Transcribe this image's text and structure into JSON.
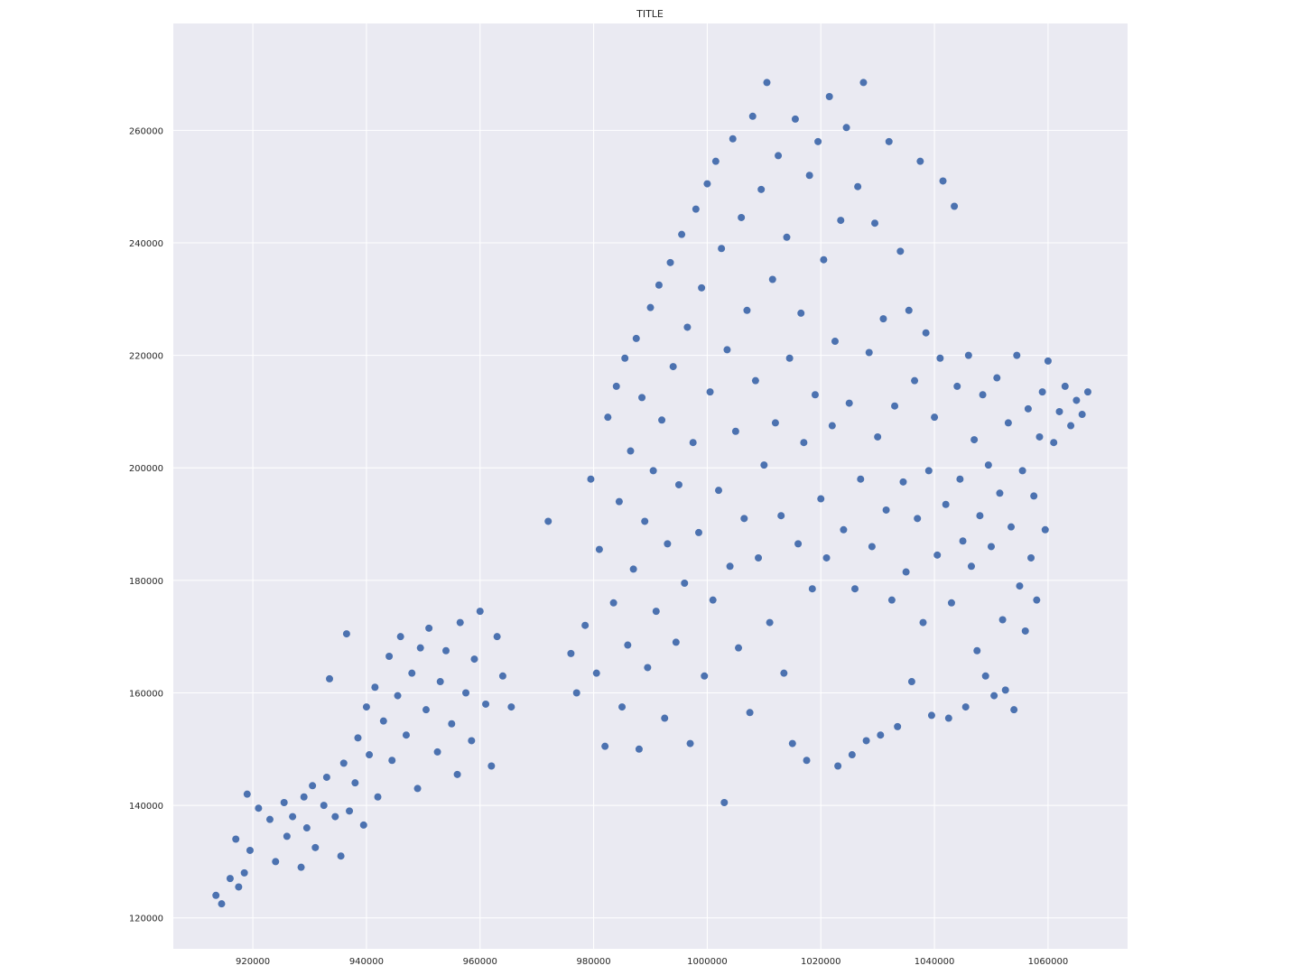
{
  "chart_data": {
    "type": "scatter",
    "title": "TITLE",
    "xlabel": "",
    "ylabel": "",
    "xlim": [
      906000,
      1074000
    ],
    "ylim": [
      114500,
      279000
    ],
    "xticks": [
      920000,
      940000,
      960000,
      980000,
      1000000,
      1020000,
      1040000,
      1060000
    ],
    "yticks": [
      120000,
      140000,
      160000,
      180000,
      200000,
      220000,
      240000,
      260000
    ],
    "grid": true,
    "colors": {
      "background": "#eaeaf2",
      "grid": "#ffffff",
      "marker": "#4c72b0"
    },
    "series": [
      {
        "name": "",
        "points": [
          [
            913500,
            124000
          ],
          [
            914500,
            122500
          ],
          [
            916000,
            127000
          ],
          [
            917500,
            125500
          ],
          [
            917000,
            134000
          ],
          [
            918500,
            128000
          ],
          [
            919500,
            132000
          ],
          [
            921000,
            139500
          ],
          [
            919000,
            142000
          ],
          [
            923000,
            137500
          ],
          [
            924000,
            130000
          ],
          [
            925500,
            140500
          ],
          [
            927000,
            138000
          ],
          [
            928500,
            129000
          ],
          [
            929500,
            136000
          ],
          [
            930500,
            143500
          ],
          [
            931000,
            132500
          ],
          [
            932500,
            140000
          ],
          [
            933000,
            145000
          ],
          [
            934500,
            138000
          ],
          [
            935500,
            131000
          ],
          [
            936000,
            147500
          ],
          [
            937000,
            139000
          ],
          [
            938500,
            152000
          ],
          [
            938000,
            144000
          ],
          [
            939500,
            136500
          ],
          [
            940000,
            157500
          ],
          [
            940500,
            149000
          ],
          [
            941500,
            161000
          ],
          [
            942000,
            141500
          ],
          [
            943000,
            155000
          ],
          [
            944000,
            166500
          ],
          [
            944500,
            148000
          ],
          [
            945500,
            159500
          ],
          [
            946000,
            170000
          ],
          [
            947000,
            152500
          ],
          [
            948000,
            163500
          ],
          [
            949000,
            143000
          ],
          [
            949500,
            168000
          ],
          [
            950500,
            157000
          ],
          [
            951000,
            171500
          ],
          [
            952500,
            149500
          ],
          [
            953000,
            162000
          ],
          [
            954000,
            167500
          ],
          [
            955000,
            154500
          ],
          [
            956000,
            145500
          ],
          [
            956500,
            172500
          ],
          [
            957500,
            160000
          ],
          [
            958500,
            151500
          ],
          [
            959000,
            166000
          ],
          [
            960000,
            174500
          ],
          [
            961000,
            158000
          ],
          [
            962000,
            147000
          ],
          [
            963000,
            170000
          ],
          [
            964000,
            163000
          ],
          [
            965500,
            157500
          ],
          [
            936500,
            170500
          ],
          [
            933500,
            162500
          ],
          [
            929000,
            141500
          ],
          [
            926000,
            134500
          ],
          [
            972000,
            190500
          ],
          [
            976000,
            167000
          ],
          [
            977000,
            160000
          ],
          [
            978500,
            172000
          ],
          [
            979500,
            198000
          ],
          [
            980500,
            163500
          ],
          [
            981000,
            185500
          ],
          [
            982000,
            150500
          ],
          [
            982500,
            209000
          ],
          [
            983500,
            176000
          ],
          [
            984000,
            214500
          ],
          [
            984500,
            194000
          ],
          [
            985000,
            157500
          ],
          [
            985500,
            219500
          ],
          [
            986000,
            168500
          ],
          [
            986500,
            203000
          ],
          [
            987000,
            182000
          ],
          [
            987500,
            223000
          ],
          [
            988000,
            150000
          ],
          [
            988500,
            212500
          ],
          [
            989000,
            190500
          ],
          [
            989500,
            164500
          ],
          [
            990000,
            228500
          ],
          [
            990500,
            199500
          ],
          [
            991000,
            174500
          ],
          [
            991500,
            232500
          ],
          [
            992000,
            208500
          ],
          [
            992500,
            155500
          ],
          [
            993000,
            186500
          ],
          [
            993500,
            236500
          ],
          [
            994000,
            218000
          ],
          [
            994500,
            169000
          ],
          [
            995000,
            197000
          ],
          [
            995500,
            241500
          ],
          [
            996000,
            179500
          ],
          [
            996500,
            225000
          ],
          [
            997000,
            151000
          ],
          [
            997500,
            204500
          ],
          [
            998000,
            246000
          ],
          [
            998500,
            188500
          ],
          [
            999000,
            232000
          ],
          [
            999500,
            163000
          ],
          [
            1000000,
            250500
          ],
          [
            1000500,
            213500
          ],
          [
            1001000,
            176500
          ],
          [
            1001500,
            254500
          ],
          [
            1002000,
            196000
          ],
          [
            1002500,
            239000
          ],
          [
            1003000,
            140500
          ],
          [
            1003500,
            221000
          ],
          [
            1004000,
            182500
          ],
          [
            1004500,
            258500
          ],
          [
            1005000,
            206500
          ],
          [
            1005500,
            168000
          ],
          [
            1006000,
            244500
          ],
          [
            1006500,
            191000
          ],
          [
            1007000,
            228000
          ],
          [
            1007500,
            156500
          ],
          [
            1008000,
            262500
          ],
          [
            1008500,
            215500
          ],
          [
            1009000,
            184000
          ],
          [
            1009500,
            249500
          ],
          [
            1010000,
            200500
          ],
          [
            1010500,
            268500
          ],
          [
            1011000,
            172500
          ],
          [
            1011500,
            233500
          ],
          [
            1012000,
            208000
          ],
          [
            1012500,
            255500
          ],
          [
            1013000,
            191500
          ],
          [
            1013500,
            163500
          ],
          [
            1014000,
            241000
          ],
          [
            1014500,
            219500
          ],
          [
            1015000,
            151000
          ],
          [
            1015500,
            262000
          ],
          [
            1016000,
            186500
          ],
          [
            1016500,
            227500
          ],
          [
            1017000,
            204500
          ],
          [
            1017500,
            148000
          ],
          [
            1018000,
            252000
          ],
          [
            1018500,
            178500
          ],
          [
            1019000,
            213000
          ],
          [
            1019500,
            258000
          ],
          [
            1020000,
            194500
          ],
          [
            1020500,
            237000
          ],
          [
            1021000,
            184000
          ],
          [
            1021500,
            266000
          ],
          [
            1022000,
            207500
          ],
          [
            1022500,
            222500
          ],
          [
            1023000,
            147000
          ],
          [
            1023500,
            244000
          ],
          [
            1024000,
            189000
          ],
          [
            1024500,
            260500
          ],
          [
            1025000,
            211500
          ],
          [
            1025500,
            149000
          ],
          [
            1026000,
            178500
          ],
          [
            1026500,
            250000
          ],
          [
            1027000,
            198000
          ],
          [
            1027500,
            268500
          ],
          [
            1028000,
            151500
          ],
          [
            1028500,
            220500
          ],
          [
            1029000,
            186000
          ],
          [
            1029500,
            243500
          ],
          [
            1030000,
            205500
          ],
          [
            1030500,
            152500
          ],
          [
            1031000,
            226500
          ],
          [
            1031500,
            192500
          ],
          [
            1032000,
            258000
          ],
          [
            1032500,
            176500
          ],
          [
            1033000,
            211000
          ],
          [
            1033500,
            154000
          ],
          [
            1034000,
            238500
          ],
          [
            1034500,
            197500
          ],
          [
            1035000,
            181500
          ],
          [
            1035500,
            228000
          ],
          [
            1036000,
            162000
          ],
          [
            1036500,
            215500
          ],
          [
            1037000,
            191000
          ],
          [
            1037500,
            254500
          ],
          [
            1038000,
            172500
          ],
          [
            1038500,
            224000
          ],
          [
            1039000,
            199500
          ],
          [
            1039500,
            156000
          ],
          [
            1040000,
            209000
          ],
          [
            1040500,
            184500
          ],
          [
            1041000,
            219500
          ],
          [
            1041500,
            251000
          ],
          [
            1042000,
            193500
          ],
          [
            1042500,
            155500
          ],
          [
            1043000,
            176000
          ],
          [
            1043500,
            246500
          ],
          [
            1044000,
            214500
          ],
          [
            1044500,
            198000
          ],
          [
            1045000,
            187000
          ],
          [
            1045500,
            157500
          ],
          [
            1046000,
            220000
          ],
          [
            1046500,
            182500
          ],
          [
            1047000,
            205000
          ],
          [
            1047500,
            167500
          ],
          [
            1048000,
            191500
          ],
          [
            1048500,
            213000
          ],
          [
            1049000,
            163000
          ],
          [
            1049500,
            200500
          ],
          [
            1050000,
            186000
          ],
          [
            1050500,
            159500
          ],
          [
            1051000,
            216000
          ],
          [
            1051500,
            195500
          ],
          [
            1052000,
            173000
          ],
          [
            1052500,
            160500
          ],
          [
            1053000,
            208000
          ],
          [
            1053500,
            189500
          ],
          [
            1054000,
            157000
          ],
          [
            1054500,
            220000
          ],
          [
            1055000,
            179000
          ],
          [
            1055500,
            199500
          ],
          [
            1056000,
            171000
          ],
          [
            1056500,
            210500
          ],
          [
            1057000,
            184000
          ],
          [
            1057500,
            195000
          ],
          [
            1058000,
            176500
          ],
          [
            1058500,
            205500
          ],
          [
            1059000,
            213500
          ],
          [
            1059500,
            189000
          ],
          [
            1060000,
            219000
          ],
          [
            1061000,
            204500
          ],
          [
            1062000,
            210000
          ],
          [
            1063000,
            214500
          ],
          [
            1064000,
            207500
          ],
          [
            1065000,
            212000
          ],
          [
            1066000,
            209500
          ],
          [
            1067000,
            213500
          ]
        ]
      }
    ]
  }
}
